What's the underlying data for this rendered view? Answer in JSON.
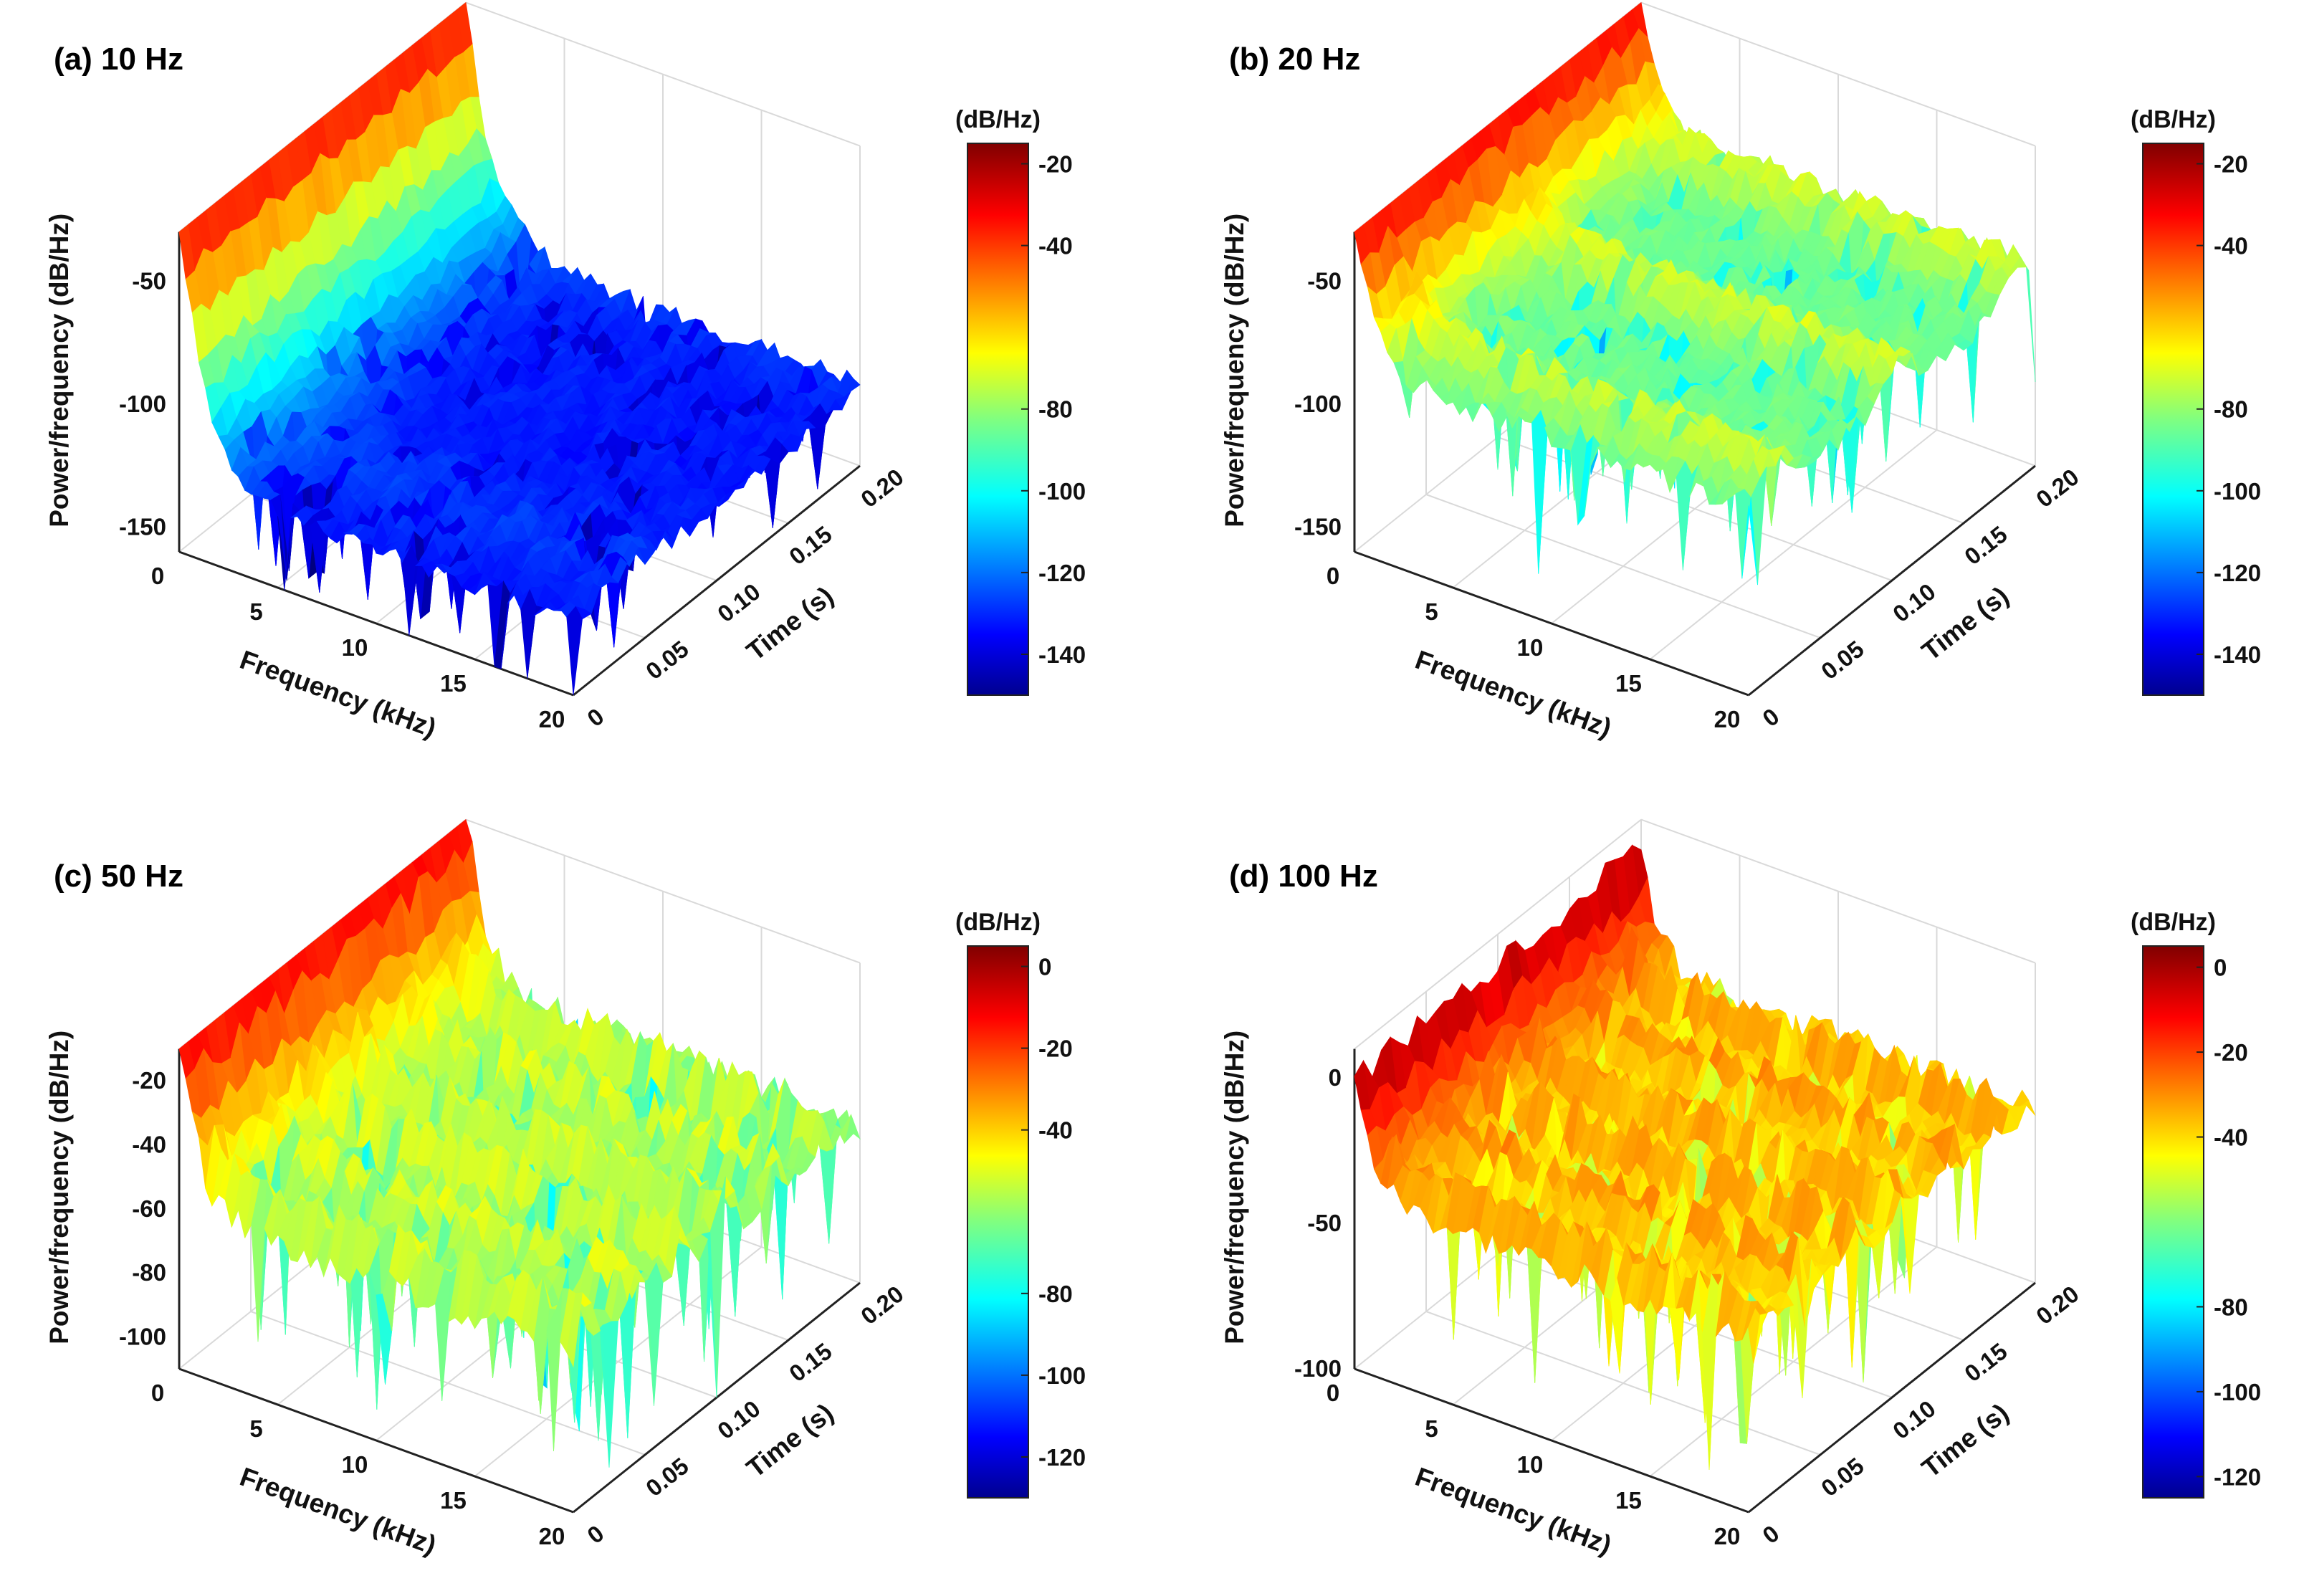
{
  "chart_data": [
    {
      "type": "surface3d",
      "title": "(a) 10 Hz",
      "xlabel": "Frequency (kHz)",
      "ylabel": "Time (s)",
      "zlabel": "Power/frequency (dB/Hz)",
      "x_ticks": [
        "0",
        "5",
        "10",
        "15",
        "20"
      ],
      "y_ticks": [
        "0",
        "0.05",
        "0.10",
        "0.15",
        "0.20"
      ],
      "z_ticks": [
        "-50",
        "-100",
        "-150"
      ],
      "xlim": [
        0,
        20
      ],
      "ylim": [
        0,
        0.2
      ],
      "zlim": [
        -160,
        -30
      ],
      "colorbar": {
        "label": "(dB/Hz)",
        "ticks": [
          "-20",
          "-40",
          "-80",
          "-100",
          "-120",
          "-140"
        ],
        "range": [
          -150,
          -15
        ]
      },
      "drive_frequency_hz": 10,
      "peak_db": -20,
      "floor_db": -130
    },
    {
      "type": "surface3d",
      "title": "(b) 20 Hz",
      "xlabel": "Frequency (kHz)",
      "ylabel": "Time (s)",
      "zlabel": "Power/frequency (dB/Hz)",
      "x_ticks": [
        "0",
        "5",
        "10",
        "15",
        "20"
      ],
      "y_ticks": [
        "0",
        "0.05",
        "0.10",
        "0.15",
        "0.20"
      ],
      "z_ticks": [
        "-50",
        "-100",
        "-150"
      ],
      "xlim": [
        0,
        20
      ],
      "ylim": [
        0,
        0.2
      ],
      "zlim": [
        -160,
        -30
      ],
      "colorbar": {
        "label": "(dB/Hz)",
        "ticks": [
          "-20",
          "-40",
          "-80",
          "-100",
          "-120",
          "-140"
        ],
        "range": [
          -150,
          -15
        ]
      },
      "drive_frequency_hz": 20,
      "peak_db": -20,
      "floor_db": -85
    },
    {
      "type": "surface3d",
      "title": "(c) 50 Hz",
      "xlabel": "Frequency (kHz)",
      "ylabel": "Time (s)",
      "zlabel": "Power/frequency (dB/Hz)",
      "x_ticks": [
        "0",
        "5",
        "10",
        "15",
        "20"
      ],
      "y_ticks": [
        "0",
        "0.05",
        "0.10",
        "0.15",
        "0.20"
      ],
      "z_ticks": [
        "-20",
        "-40",
        "-60",
        "-80",
        "-100"
      ],
      "xlim": [
        0,
        20
      ],
      "ylim": [
        0,
        0.2
      ],
      "zlim": [
        -110,
        -10
      ],
      "colorbar": {
        "label": "(dB/Hz)",
        "ticks": [
          "0",
          "-20",
          "-40",
          "-80",
          "-100",
          "-120"
        ],
        "range": [
          -130,
          5
        ]
      },
      "drive_frequency_hz": 50,
      "peak_db": 0,
      "floor_db": -60
    },
    {
      "type": "surface3d",
      "title": "(d) 100 Hz",
      "xlabel": "Frequency (kHz)",
      "ylabel": "Time (s)",
      "zlabel": "Power/frequency (dB/Hz)",
      "x_ticks": [
        "0",
        "5",
        "10",
        "15",
        "20"
      ],
      "y_ticks": [
        "0",
        "0.05",
        "0.10",
        "0.15",
        "0.20"
      ],
      "z_ticks": [
        "0",
        "-50",
        "-100"
      ],
      "xlim": [
        0,
        20
      ],
      "ylim": [
        0,
        0.2
      ],
      "zlim": [
        -100,
        10
      ],
      "colorbar": {
        "label": "(dB/Hz)",
        "ticks": [
          "0",
          "-20",
          "-40",
          "-80",
          "-100",
          "-120"
        ],
        "range": [
          -125,
          5
        ]
      },
      "drive_frequency_hz": 100,
      "peak_db": 0,
      "floor_db": -40
    }
  ]
}
